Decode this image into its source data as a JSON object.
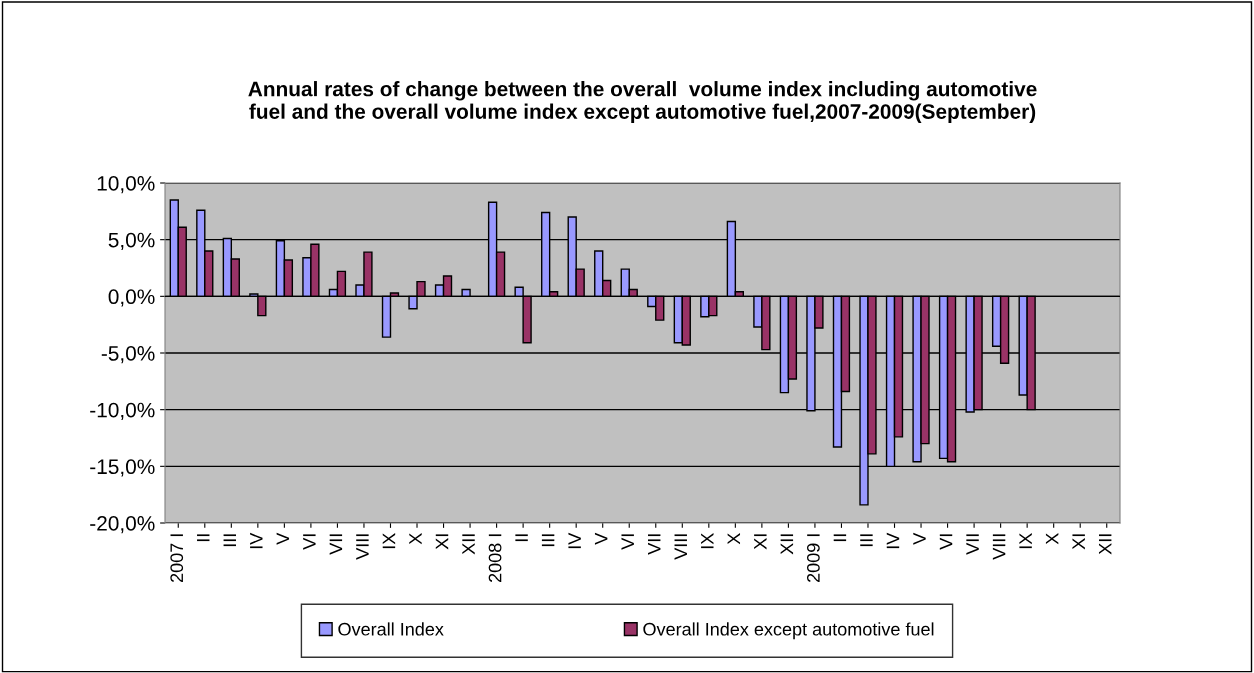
{
  "chart_data": {
    "type": "bar",
    "title": "Annual rates of change between the overall  volume index including automotive\nfuel and the overall volume index except automotive fuel,2007-2009(September)",
    "categories": [
      "2007 I",
      "II",
      "III",
      "IV",
      "V",
      "VI",
      "VII",
      "VIII",
      "IX",
      "X",
      "XI",
      "XII",
      "2008 I",
      "II",
      "III",
      "IV",
      "V",
      "VI",
      "VII",
      "VIII",
      "IX",
      "X",
      "XI",
      "XII",
      "2009 I",
      "II",
      "III",
      "IV",
      "V",
      "VI",
      "VII",
      "VIII",
      "IX",
      "X",
      "XI",
      "XII"
    ],
    "series": [
      {
        "name": "Overall Index",
        "color": "#9999ff",
        "values": [
          8.5,
          7.6,
          5.1,
          0.2,
          4.9,
          3.4,
          0.6,
          1.0,
          -3.6,
          -1.1,
          1.0,
          0.6,
          8.3,
          0.8,
          7.4,
          7.0,
          4.0,
          2.4,
          -0.9,
          -4.1,
          -1.8,
          6.6,
          -2.7,
          -8.5,
          -10.1,
          -13.3,
          -18.4,
          -15.0,
          -14.6,
          -14.3,
          -10.2,
          -4.4,
          -8.7,
          null,
          null,
          null
        ]
      },
      {
        "name": "Overall Index except automotive fuel",
        "color": "#993366",
        "values": [
          6.1,
          4.0,
          3.3,
          -1.7,
          3.2,
          4.6,
          2.2,
          3.9,
          0.3,
          1.3,
          1.8,
          null,
          3.9,
          -4.1,
          0.4,
          2.4,
          1.4,
          0.6,
          -2.1,
          -4.3,
          -1.7,
          0.4,
          -4.7,
          -7.3,
          -2.8,
          -8.4,
          -13.9,
          -12.4,
          -13.0,
          -14.6,
          -10.0,
          -5.9,
          -10.0,
          null,
          null,
          null
        ]
      }
    ],
    "ylim": [
      -20,
      10
    ],
    "yticks": [
      {
        "value": -20,
        "label": "-20,0%"
      },
      {
        "value": -15,
        "label": "-15,0%"
      },
      {
        "value": -10,
        "label": "-10,0%"
      },
      {
        "value": -5,
        "label": "-5,0%"
      },
      {
        "value": 0,
        "label": "0,0%"
      },
      {
        "value": 5,
        "label": "5,0%"
      },
      {
        "value": 10,
        "label": "10,0%"
      }
    ],
    "grid": "y",
    "legend": "bottom"
  }
}
